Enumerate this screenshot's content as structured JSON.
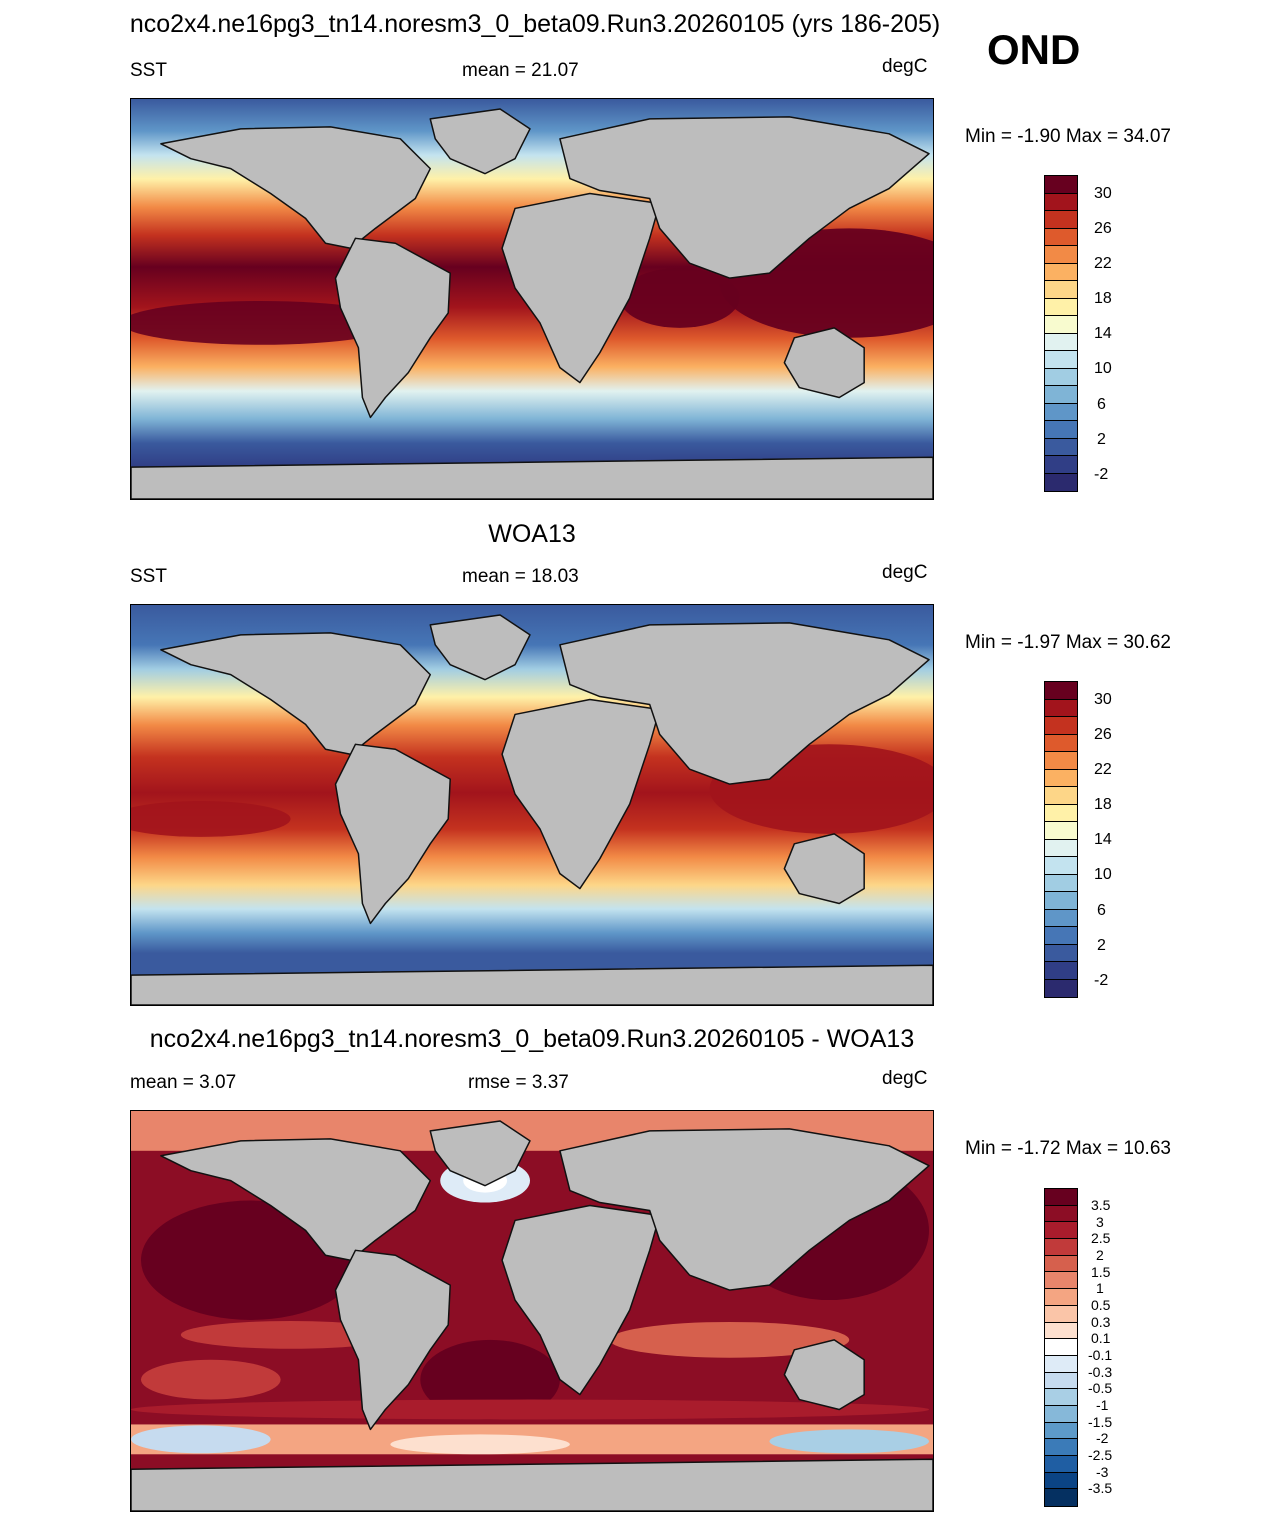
{
  "figure": {
    "title": "nco2x4.ne16pg3_tn14.noresm3_0_beta09.Run3.20260105 (yrs 186-205)",
    "season": "OND"
  },
  "panels": [
    {
      "subtitle": "",
      "left_label": "SST",
      "center_label": "mean =  21.07",
      "right_label": "degC",
      "minmax": "Min =  -1.90 Max =  34.07"
    },
    {
      "subtitle": "WOA13",
      "left_label": "SST",
      "center_label": "mean =  18.03",
      "right_label": "degC",
      "minmax": "Min =  -1.97 Max =  30.62"
    },
    {
      "subtitle": "nco2x4.ne16pg3_tn14.noresm3_0_beta09.Run3.20260105 - WOA13",
      "left_label": "mean =   3.07",
      "center_label": "rmse =   3.37",
      "right_label": "degC",
      "minmax": "Min =  -1.72 Max =  10.63"
    }
  ],
  "colorbar_sst": {
    "labels": [
      "30",
      "26",
      "22",
      "18",
      "14",
      "10",
      "6",
      "2",
      "-2"
    ],
    "colors": [
      "#67001f",
      "#a2141c",
      "#c4321f",
      "#de5a2c",
      "#f28a46",
      "#fbb162",
      "#fdd688",
      "#fff1a8",
      "#f8fbcf",
      "#e1f2f0",
      "#c3e3ef",
      "#a1cde3",
      "#7fb4d6",
      "#5f96c8",
      "#4676b6",
      "#3a5a9e",
      "#303e86",
      "#2b2a6e"
    ]
  },
  "colorbar_diff": {
    "labels": [
      "3.5",
      "3",
      "2.5",
      "2",
      "1.5",
      "1",
      "0.5",
      "0.3",
      "0.1",
      "-0.1",
      "-0.3",
      "-0.5",
      "-1",
      "-1.5",
      "-2",
      "-2.5",
      "-3",
      "-3.5"
    ],
    "colors": [
      "#67001f",
      "#8c0d25",
      "#a91c2c",
      "#c13a3a",
      "#d6604d",
      "#e8856b",
      "#f4a582",
      "#fac5a8",
      "#fde0cf",
      "#ffffff",
      "#deebf7",
      "#c6dbef",
      "#a9cfe5",
      "#86b8d9",
      "#5d9ac9",
      "#3b7bb8",
      "#1f5ea3",
      "#0b4485",
      "#053061"
    ]
  }
}
